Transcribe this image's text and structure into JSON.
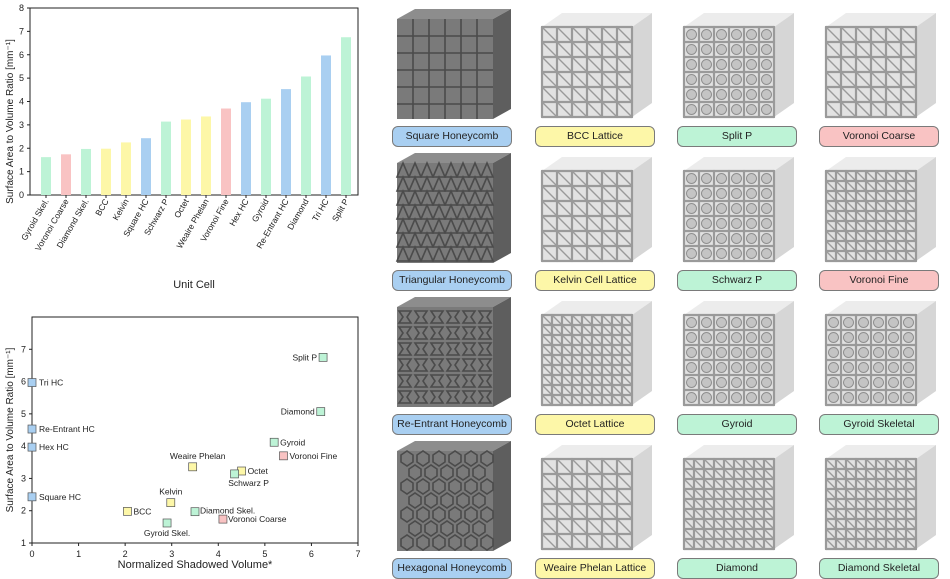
{
  "colors": {
    "honeycomb": "#a9cff1",
    "strut_lattice": "#fdf7a8",
    "tpms": "#bdf3d6",
    "voronoi": "#f9c3c3",
    "axis": "#222222"
  },
  "chart_data": [
    {
      "type": "bar",
      "categories": [
        "Gyroid Skel.",
        "Voronoi Coarse",
        "Diamond Skel.",
        "BCC",
        "Kelvin",
        "Square HC",
        "Schwarz P",
        "Octet",
        "Weaire Phelan",
        "Voronoi Fine",
        "Hex HC",
        "Gyroid",
        "Re-Entrant HC",
        "Diamond",
        "Tri HC",
        "Split P"
      ],
      "values": [
        1.62,
        1.74,
        1.97,
        1.98,
        2.25,
        2.43,
        3.14,
        3.23,
        3.36,
        3.7,
        3.97,
        4.12,
        4.53,
        5.07,
        5.97,
        6.75
      ],
      "groups": [
        "tpms",
        "voronoi",
        "tpms",
        "strut_lattice",
        "strut_lattice",
        "honeycomb",
        "tpms",
        "strut_lattice",
        "strut_lattice",
        "voronoi",
        "honeycomb",
        "tpms",
        "honeycomb",
        "tpms",
        "honeycomb",
        "tpms"
      ],
      "title": "",
      "xlabel": "Unit Cell",
      "ylabel": "Surface Area to Volume Ratio [mm⁻¹]",
      "ylim": [
        0,
        8
      ],
      "yticks": [
        "0",
        "1",
        "2",
        "3",
        "4",
        "5",
        "6",
        "7",
        "8"
      ]
    },
    {
      "type": "scatter",
      "points": [
        {
          "label": "Tri HC",
          "x": 0.0,
          "y": 5.97,
          "group": "honeycomb"
        },
        {
          "label": "Re-Entrant HC",
          "x": 0.0,
          "y": 4.53,
          "group": "honeycomb"
        },
        {
          "label": "Hex HC",
          "x": 0.0,
          "y": 3.97,
          "group": "honeycomb"
        },
        {
          "label": "Square HC",
          "x": 0.0,
          "y": 2.43,
          "group": "honeycomb"
        },
        {
          "label": "BCC",
          "x": 2.05,
          "y": 1.98,
          "group": "strut_lattice"
        },
        {
          "label": "Kelvin",
          "x": 2.98,
          "y": 2.25,
          "group": "strut_lattice"
        },
        {
          "label": "Weaire Phelan",
          "x": 3.45,
          "y": 3.36,
          "group": "strut_lattice"
        },
        {
          "label": "Octet",
          "x": 4.5,
          "y": 3.23,
          "group": "strut_lattice"
        },
        {
          "label": "Gyroid Skel.",
          "x": 2.9,
          "y": 1.62,
          "group": "tpms"
        },
        {
          "label": "Diamond Skel.",
          "x": 3.5,
          "y": 1.97,
          "group": "tpms"
        },
        {
          "label": "Schwarz P",
          "x": 4.35,
          "y": 3.14,
          "group": "tpms"
        },
        {
          "label": "Gyroid",
          "x": 5.2,
          "y": 4.12,
          "group": "tpms"
        },
        {
          "label": "Diamond",
          "x": 6.2,
          "y": 5.07,
          "group": "tpms"
        },
        {
          "label": "Split P",
          "x": 6.25,
          "y": 6.75,
          "group": "tpms"
        },
        {
          "label": "Voronoi Coarse",
          "x": 4.1,
          "y": 1.74,
          "group": "voronoi"
        },
        {
          "label": "Voronoi Fine",
          "x": 5.4,
          "y": 3.7,
          "group": "voronoi"
        }
      ],
      "xlabel": "Normalized Shadowed Volume*",
      "ylabel": "Surface Area to Volume Ratio [mm⁻¹]",
      "xlim": [
        0,
        7
      ],
      "ylim": [
        1,
        8
      ],
      "xticks": [
        "0",
        "1",
        "2",
        "3",
        "4",
        "5",
        "6",
        "7"
      ],
      "yticks": [
        "1",
        "2",
        "3",
        "4",
        "5",
        "6",
        "7"
      ]
    }
  ],
  "gallery": [
    {
      "name": "Square Honeycomb",
      "group": "honeycomb",
      "icon": "square-honeycomb-render"
    },
    {
      "name": "BCC Lattice",
      "group": "strut_lattice",
      "icon": "bcc-lattice-render"
    },
    {
      "name": "Split P",
      "group": "tpms",
      "icon": "split-p-render"
    },
    {
      "name": "Voronoi Coarse",
      "group": "voronoi",
      "icon": "voronoi-coarse-render"
    },
    {
      "name": "Triangular Honeycomb",
      "group": "honeycomb",
      "icon": "triangular-honeycomb-render"
    },
    {
      "name": "Kelvin Cell Lattice",
      "group": "strut_lattice",
      "icon": "kelvin-cell-lattice-render"
    },
    {
      "name": "Schwarz P",
      "group": "tpms",
      "icon": "schwarz-p-render"
    },
    {
      "name": "Voronoi Fine",
      "group": "voronoi",
      "icon": "voronoi-fine-render"
    },
    {
      "name": "Re-Entrant Honeycomb",
      "group": "honeycomb",
      "icon": "re-entrant-honeycomb-render"
    },
    {
      "name": "Octet Lattice",
      "group": "strut_lattice",
      "icon": "octet-lattice-render"
    },
    {
      "name": "Gyroid",
      "group": "tpms",
      "icon": "gyroid-render"
    },
    {
      "name": "Gyroid Skeletal",
      "group": "tpms",
      "icon": "gyroid-skeletal-render"
    },
    {
      "name": "Hexagonal Honeycomb",
      "group": "honeycomb",
      "icon": "hexagonal-honeycomb-render"
    },
    {
      "name": "Weaire Phelan Lattice",
      "group": "strut_lattice",
      "icon": "weaire-phelan-lattice-render"
    },
    {
      "name": "Diamond",
      "group": "tpms",
      "icon": "diamond-render"
    },
    {
      "name": "Diamond Skeletal",
      "group": "tpms",
      "icon": "diamond-skeletal-render"
    }
  ]
}
